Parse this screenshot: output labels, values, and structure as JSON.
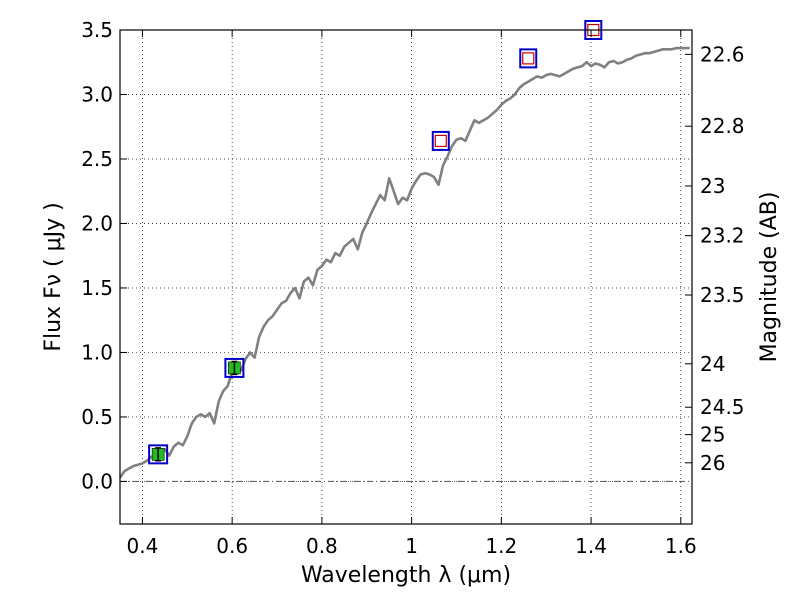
{
  "chart_data": {
    "type": "line",
    "xlabel": "Wavelength  λ (μm)",
    "ylabel": "Flux  Fν  ( μJy )",
    "y2label": "Magnitude (AB)",
    "xlim": [
      0.35,
      1.625
    ],
    "ylim": [
      -0.33,
      3.5
    ],
    "grid": true,
    "x_ticks": [
      {
        "value": 0.4,
        "label": "0.4"
      },
      {
        "value": 0.6,
        "label": "0.6"
      },
      {
        "value": 0.8,
        "label": "0.8"
      },
      {
        "value": 1.0,
        "label": "1"
      },
      {
        "value": 1.2,
        "label": "1.2"
      },
      {
        "value": 1.4,
        "label": "1.4"
      },
      {
        "value": 1.6,
        "label": "1.6"
      }
    ],
    "y_ticks": [
      {
        "value": 0.0,
        "label": "0.0"
      },
      {
        "value": 0.5,
        "label": "0.5"
      },
      {
        "value": 1.0,
        "label": "1.0"
      },
      {
        "value": 1.5,
        "label": "1.5"
      },
      {
        "value": 2.0,
        "label": "2.0"
      },
      {
        "value": 2.5,
        "label": "2.5"
      },
      {
        "value": 3.0,
        "label": "3.0"
      },
      {
        "value": 3.5,
        "label": "3.5"
      }
    ],
    "mag_ticks": [
      {
        "value": 22.6,
        "label": "22.6"
      },
      {
        "value": 22.8,
        "label": "22.8"
      },
      {
        "value": 23.0,
        "label": "23"
      },
      {
        "value": 23.2,
        "label": "23.2"
      },
      {
        "value": 23.5,
        "label": "23.5"
      },
      {
        "value": 24.0,
        "label": "24"
      },
      {
        "value": 24.5,
        "label": "24.5"
      },
      {
        "value": 25.0,
        "label": "25"
      },
      {
        "value": 26.0,
        "label": "26"
      }
    ],
    "model_spectrum": {
      "color": "#808080",
      "x": [
        0.35,
        0.36,
        0.37,
        0.38,
        0.39,
        0.4,
        0.41,
        0.42,
        0.43,
        0.44,
        0.45,
        0.46,
        0.47,
        0.48,
        0.49,
        0.5,
        0.51,
        0.52,
        0.53,
        0.54,
        0.55,
        0.56,
        0.57,
        0.58,
        0.59,
        0.6,
        0.61,
        0.62,
        0.63,
        0.64,
        0.65,
        0.66,
        0.67,
        0.68,
        0.69,
        0.7,
        0.71,
        0.72,
        0.73,
        0.74,
        0.75,
        0.76,
        0.77,
        0.78,
        0.79,
        0.8,
        0.81,
        0.82,
        0.83,
        0.84,
        0.85,
        0.86,
        0.87,
        0.88,
        0.89,
        0.9,
        0.91,
        0.92,
        0.93,
        0.94,
        0.95,
        0.96,
        0.97,
        0.98,
        0.99,
        1.0,
        1.01,
        1.02,
        1.03,
        1.04,
        1.05,
        1.06,
        1.07,
        1.08,
        1.09,
        1.1,
        1.11,
        1.12,
        1.13,
        1.14,
        1.15,
        1.16,
        1.17,
        1.18,
        1.19,
        1.2,
        1.21,
        1.22,
        1.23,
        1.24,
        1.25,
        1.26,
        1.27,
        1.28,
        1.29,
        1.3,
        1.31,
        1.32,
        1.33,
        1.34,
        1.35,
        1.36,
        1.37,
        1.38,
        1.39,
        1.4,
        1.41,
        1.42,
        1.43,
        1.44,
        1.45,
        1.46,
        1.47,
        1.48,
        1.49,
        1.5,
        1.51,
        1.52,
        1.53,
        1.54,
        1.55,
        1.56,
        1.57,
        1.58,
        1.59,
        1.6,
        1.61,
        1.62
      ],
      "y": [
        0.03,
        0.08,
        0.1,
        0.12,
        0.13,
        0.14,
        0.16,
        0.19,
        0.21,
        0.22,
        0.25,
        0.2,
        0.27,
        0.3,
        0.28,
        0.35,
        0.45,
        0.5,
        0.52,
        0.5,
        0.53,
        0.45,
        0.62,
        0.7,
        0.74,
        0.85,
        0.9,
        0.86,
        0.95,
        1.0,
        0.96,
        1.12,
        1.2,
        1.25,
        1.28,
        1.33,
        1.38,
        1.4,
        1.46,
        1.5,
        1.42,
        1.55,
        1.58,
        1.52,
        1.64,
        1.67,
        1.72,
        1.7,
        1.77,
        1.75,
        1.82,
        1.85,
        1.88,
        1.8,
        1.93,
        2.0,
        2.08,
        2.15,
        2.22,
        2.18,
        2.35,
        2.25,
        2.15,
        2.2,
        2.18,
        2.27,
        2.33,
        2.38,
        2.39,
        2.38,
        2.36,
        2.3,
        2.45,
        2.52,
        2.6,
        2.65,
        2.66,
        2.64,
        2.72,
        2.8,
        2.78,
        2.8,
        2.82,
        2.85,
        2.88,
        2.92,
        2.95,
        2.97,
        3.0,
        3.05,
        3.08,
        3.1,
        3.12,
        3.14,
        3.13,
        3.15,
        3.16,
        3.15,
        3.14,
        3.16,
        3.18,
        3.2,
        3.21,
        3.22,
        3.25,
        3.22,
        3.24,
        3.23,
        3.21,
        3.25,
        3.26,
        3.24,
        3.25,
        3.27,
        3.28,
        3.3,
        3.31,
        3.32,
        3.32,
        3.33,
        3.34,
        3.35,
        3.35,
        3.35,
        3.36,
        3.36,
        3.36,
        3.36
      ]
    },
    "photometry_detected": {
      "x": [
        0.435,
        0.605
      ],
      "y": [
        0.21,
        0.88
      ],
      "yerr": [
        0.05,
        0.05
      ],
      "marker_color": "#22bb22",
      "box_color": "#0000cc"
    },
    "photometry_upper_limits": {
      "x": [
        1.065,
        1.26,
        1.405
      ],
      "y": [
        2.64,
        3.28,
        3.5
      ],
      "marker_color": "#cc0000",
      "box_color": "#0000cc"
    }
  }
}
